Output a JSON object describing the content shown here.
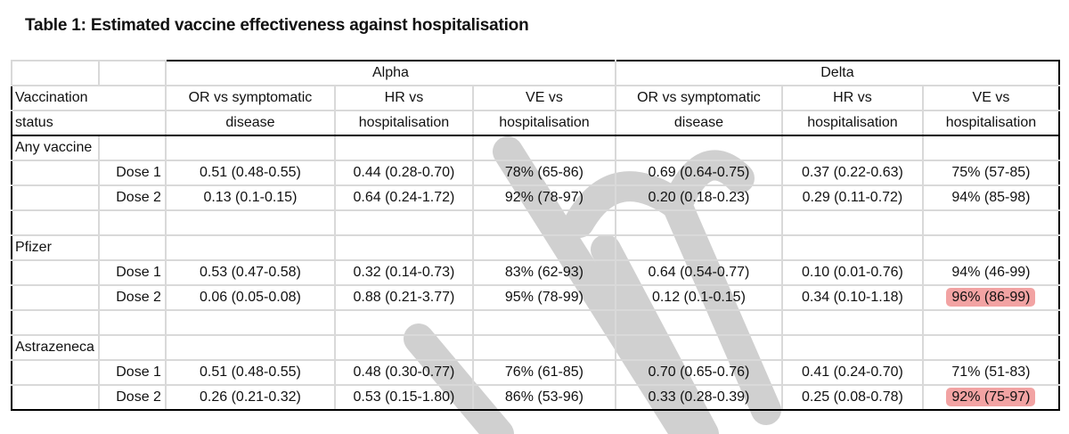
{
  "title": "Table 1: Estimated vaccine effectiveness against hospitalisation",
  "watermark": "Draft",
  "highlight_color": "#f2a3a3",
  "variants": [
    "Alpha",
    "Delta"
  ],
  "header": {
    "status_line1": "Vaccination",
    "status_line2": "status",
    "columns": [
      {
        "line1": "OR vs symptomatic",
        "line2": "disease"
      },
      {
        "line1": "HR vs",
        "line2": "hospitalisation"
      },
      {
        "line1": "VE vs",
        "line2": "hospitalisation"
      },
      {
        "line1": "OR vs symptomatic",
        "line2": "disease"
      },
      {
        "line1": "HR vs",
        "line2": "hospitalisation"
      },
      {
        "line1": "VE vs",
        "line2": "hospitalisation"
      }
    ]
  },
  "groups": [
    {
      "name": "Any vaccine",
      "rows": [
        {
          "dose": "Dose 1",
          "values": [
            "0.51 (0.48-0.55)",
            "0.44 (0.28-0.70)",
            "78% (65-86)",
            "0.69 (0.64-0.75)",
            "0.37 (0.22-0.63)",
            "75% (57-85)"
          ],
          "highlight": false
        },
        {
          "dose": "Dose 2",
          "values": [
            "0.13 (0.1-0.15)",
            "0.64 (0.24-1.72)",
            "92% (78-97)",
            "0.20 (0.18-0.23)",
            "0.29 (0.11-0.72)",
            "94% (85-98)"
          ],
          "highlight": false
        }
      ]
    },
    {
      "name": "Pfizer",
      "rows": [
        {
          "dose": "Dose 1",
          "values": [
            "0.53 (0.47-0.58)",
            "0.32 (0.14-0.73)",
            "83% (62-93)",
            "0.64 (0.54-0.77)",
            "0.10 (0.01-0.76)",
            "94% (46-99)"
          ],
          "highlight": false
        },
        {
          "dose": "Dose 2",
          "values": [
            "0.06 (0.05-0.08)",
            "0.88 (0.21-3.77)",
            "95% (78-99)",
            "0.12 (0.1-0.15)",
            "0.34 (0.10-1.18)",
            "96% (86-99)"
          ],
          "highlight": true
        }
      ]
    },
    {
      "name": "Astrazeneca",
      "rows": [
        {
          "dose": "Dose 1",
          "values": [
            "0.51 (0.48-0.55)",
            "0.48 (0.30-0.77)",
            "76% (61-85)",
            "0.70 (0.65-0.76)",
            "0.41 (0.24-0.70)",
            "71% (51-83)"
          ],
          "highlight": false
        },
        {
          "dose": "Dose 2",
          "values": [
            "0.26 (0.21-0.32)",
            "0.53 (0.15-1.80)",
            "86% (53-96)",
            "0.33 (0.28-0.39)",
            "0.25 (0.08-0.78)",
            "92% (75-97)"
          ],
          "highlight": true
        }
      ]
    }
  ]
}
